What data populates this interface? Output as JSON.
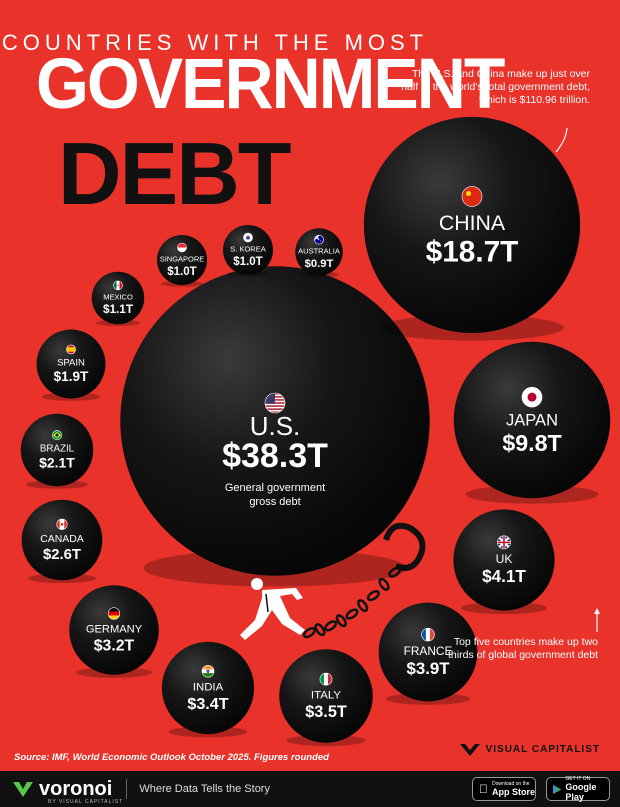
{
  "header": {
    "subtitle": "COUNTRIES WITH THE MOST",
    "title_line1": "GOVERNMENT",
    "title_line2": "DEBT"
  },
  "annotations": {
    "top": "The U.S. and China make up just over half of the world's total government debt, which is $110.96 trillion.",
    "bottom": "Top five countries make up two thirds of global government debt",
    "us_note": "General government gross debt"
  },
  "source": "Source: IMF, World Economic Outlook October 2025. Figures rounded",
  "brand": {
    "publisher": "VISUAL CAPITALIST",
    "footer_name": "voronoi",
    "footer_sub": "BY VISUAL CAPITALIST",
    "tagline": "Where Data Tells the Story",
    "app_store_small": "Download on the",
    "app_store_big": "App Store",
    "google_small": "GET IT ON",
    "google_big": "Google Play"
  },
  "colors": {
    "background": "#e8322a",
    "ball": "#111111",
    "text": "#ffffff"
  },
  "chart_data": {
    "type": "bubble",
    "unit": "trillion USD",
    "values": [
      {
        "country": "U.S.",
        "value": 38.3,
        "label": "$38.3T",
        "flag": "us-flag-icon"
      },
      {
        "country": "CHINA",
        "value": 18.7,
        "label": "$18.7T",
        "flag": "china-flag-icon"
      },
      {
        "country": "JAPAN",
        "value": 9.8,
        "label": "$9.8T",
        "flag": "japan-flag-icon"
      },
      {
        "country": "UK",
        "value": 4.1,
        "label": "$4.1T",
        "flag": "uk-flag-icon"
      },
      {
        "country": "FRANCE",
        "value": 3.9,
        "label": "$3.9T",
        "flag": "france-flag-icon"
      },
      {
        "country": "ITALY",
        "value": 3.5,
        "label": "$3.5T",
        "flag": "italy-flag-icon"
      },
      {
        "country": "INDIA",
        "value": 3.4,
        "label": "$3.4T",
        "flag": "india-flag-icon"
      },
      {
        "country": "GERMANY",
        "value": 3.2,
        "label": "$3.2T",
        "flag": "germany-flag-icon"
      },
      {
        "country": "CANADA",
        "value": 2.6,
        "label": "$2.6T",
        "flag": "canada-flag-icon"
      },
      {
        "country": "BRAZIL",
        "value": 2.1,
        "label": "$2.1T",
        "flag": "brazil-flag-icon"
      },
      {
        "country": "SPAIN",
        "value": 1.9,
        "label": "$1.9T",
        "flag": "spain-flag-icon"
      },
      {
        "country": "MEXICO",
        "value": 1.1,
        "label": "$1.1T",
        "flag": "mexico-flag-icon"
      },
      {
        "country": "SINGAPORE",
        "value": 1.0,
        "label": "$1.0T",
        "flag": "singapore-flag-icon"
      },
      {
        "country": "S. KOREA",
        "value": 1.0,
        "label": "$1.0T",
        "flag": "south-korea-flag-icon"
      },
      {
        "country": "AUSTRALIA",
        "value": 0.9,
        "label": "$0.9T",
        "flag": "australia-flag-icon"
      }
    ]
  }
}
